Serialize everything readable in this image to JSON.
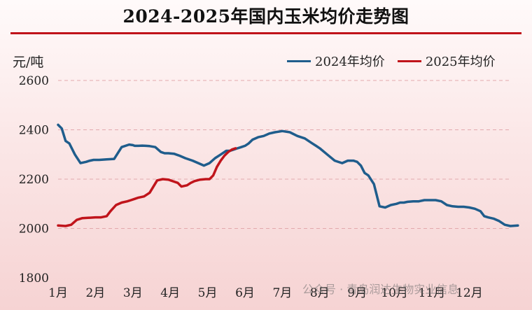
{
  "chart_data": {
    "type": "line",
    "title": "2024-2025年国内玉米均价走势图",
    "ylabel": "元/吨",
    "xlabel": "",
    "ylim": [
      1800,
      2600
    ],
    "yticks": [
      "2600",
      "2400",
      "2200",
      "2000",
      "1800"
    ],
    "xticks": [
      "1月",
      "2月",
      "3月",
      "4月",
      "5月",
      "6月",
      "7月",
      "8月",
      "9月",
      "10月",
      "11月",
      "12月"
    ],
    "grid": true,
    "legend": "top-right",
    "series": [
      {
        "name": "2024年均价",
        "color": "#1f5d8c",
        "x": [
          1.0,
          1.1,
          1.2,
          1.3,
          1.45,
          1.6,
          1.75,
          1.85,
          1.95,
          2.1,
          2.3,
          2.5,
          2.7,
          2.9,
          3.0,
          3.05,
          3.15,
          3.25,
          3.35,
          3.45,
          3.6,
          3.75,
          3.85,
          3.95,
          4.1,
          4.25,
          4.4,
          4.6,
          4.75,
          4.9,
          5.05,
          5.2,
          5.35,
          5.5,
          5.6,
          5.7,
          5.8,
          5.9,
          6.0,
          6.1,
          6.2,
          6.35,
          6.5,
          6.65,
          6.8,
          7.0,
          7.2,
          7.4,
          7.6,
          7.8,
          7.9,
          8.0,
          8.2,
          8.4,
          8.6,
          8.75,
          8.9,
          9.0,
          9.1,
          9.2,
          9.3,
          9.45,
          9.6,
          9.75,
          9.9,
          10.05,
          10.15,
          10.25,
          10.35,
          10.5,
          10.65,
          10.8,
          10.95,
          11.1,
          11.25,
          11.4,
          11.55,
          11.7,
          11.85,
          12.0,
          12.15,
          12.3,
          12.4,
          12.5,
          12.65,
          12.8,
          12.95,
          13.1,
          13.3
        ],
        "values": [
          2420,
          2405,
          2355,
          2345,
          2300,
          2265,
          2270,
          2275,
          2278,
          2278,
          2280,
          2282,
          2330,
          2340,
          2338,
          2335,
          2335,
          2336,
          2335,
          2334,
          2330,
          2310,
          2305,
          2305,
          2303,
          2295,
          2285,
          2275,
          2265,
          2255,
          2265,
          2285,
          2300,
          2315,
          2315,
          2320,
          2325,
          2330,
          2335,
          2345,
          2360,
          2370,
          2375,
          2385,
          2390,
          2395,
          2390,
          2375,
          2365,
          2345,
          2335,
          2325,
          2300,
          2275,
          2265,
          2275,
          2275,
          2270,
          2255,
          2225,
          2215,
          2180,
          2090,
          2085,
          2095,
          2100,
          2105,
          2105,
          2108,
          2110,
          2110,
          2115,
          2115,
          2115,
          2110,
          2095,
          2090,
          2088,
          2088,
          2085,
          2080,
          2070,
          2050,
          2045,
          2040,
          2030,
          2015,
          2010,
          2012
        ]
      },
      {
        "name": "2025年均价",
        "color": "#c0141b",
        "x": [
          1.0,
          1.2,
          1.35,
          1.5,
          1.65,
          1.8,
          2.0,
          2.15,
          2.3,
          2.4,
          2.55,
          2.7,
          2.85,
          2.95,
          3.05,
          3.15,
          3.3,
          3.45,
          3.55,
          3.65,
          3.8,
          3.95,
          4.1,
          4.2,
          4.3,
          4.45,
          4.55,
          4.65,
          4.8,
          4.95,
          5.05,
          5.15,
          5.25,
          5.35,
          5.45,
          5.55,
          5.65,
          5.75
        ],
        "values": [
          2012,
          2010,
          2015,
          2035,
          2042,
          2043,
          2045,
          2045,
          2050,
          2070,
          2095,
          2105,
          2110,
          2115,
          2120,
          2125,
          2130,
          2145,
          2170,
          2195,
          2200,
          2198,
          2190,
          2185,
          2170,
          2175,
          2185,
          2192,
          2198,
          2200,
          2200,
          2215,
          2250,
          2275,
          2295,
          2310,
          2320,
          2325
        ]
      }
    ]
  },
  "watermark": "公众号 · 青岛润达生物实业信息"
}
